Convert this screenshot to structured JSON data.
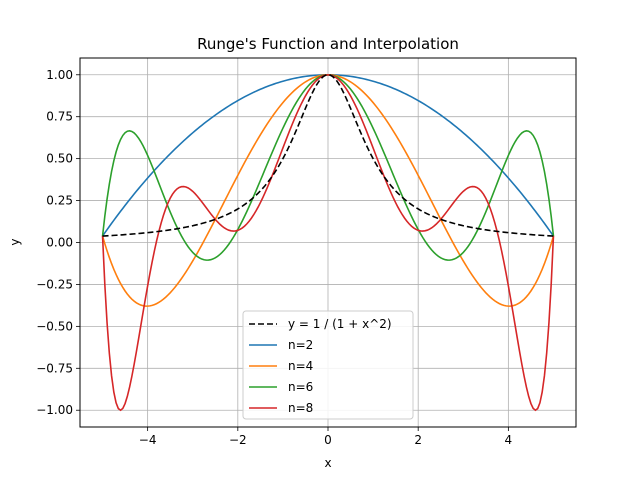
{
  "chart_data": {
    "type": "line",
    "title": "Runge's Function and Interpolation",
    "xlabel": "x",
    "ylabel": "y",
    "xlim": [
      -5.5,
      5.5
    ],
    "ylim": [
      -1.1,
      1.1
    ],
    "x_ticks": [
      -4,
      -2,
      0,
      2,
      4
    ],
    "x_tick_labels": [
      "−4",
      "−2",
      "0",
      "2",
      "4"
    ],
    "y_ticks": [
      -1.0,
      -0.75,
      -0.5,
      -0.25,
      0.0,
      0.25,
      0.5,
      0.75,
      1.0
    ],
    "y_tick_labels": [
      "−1.00",
      "−0.75",
      "−0.50",
      "−0.25",
      "0.00",
      "0.25",
      "0.50",
      "0.75",
      "1.00"
    ],
    "grid": true,
    "legend_position": "lower center",
    "domain": [
      -5,
      5
    ],
    "series": [
      {
        "name": "y = 1 / (1 + x^2)",
        "color": "#000000",
        "style": "dashed",
        "nodes": []
      },
      {
        "name": "n=2",
        "color": "#1f77b4",
        "style": "solid",
        "nodes": [
          -5,
          0,
          5
        ]
      },
      {
        "name": "n=4",
        "color": "#ff7f0e",
        "style": "solid",
        "nodes": [
          -5,
          -2.5,
          0,
          2.5,
          5
        ]
      },
      {
        "name": "n=6",
        "color": "#2ca02c",
        "style": "solid",
        "nodes": [
          -5,
          -3.3333,
          -1.6667,
          0,
          1.6667,
          3.3333,
          5
        ]
      },
      {
        "name": "n=8",
        "color": "#d62728",
        "style": "solid",
        "nodes": [
          -5,
          -3.75,
          -2.5,
          -1.25,
          0,
          1.25,
          2.5,
          3.75,
          5
        ]
      }
    ]
  }
}
